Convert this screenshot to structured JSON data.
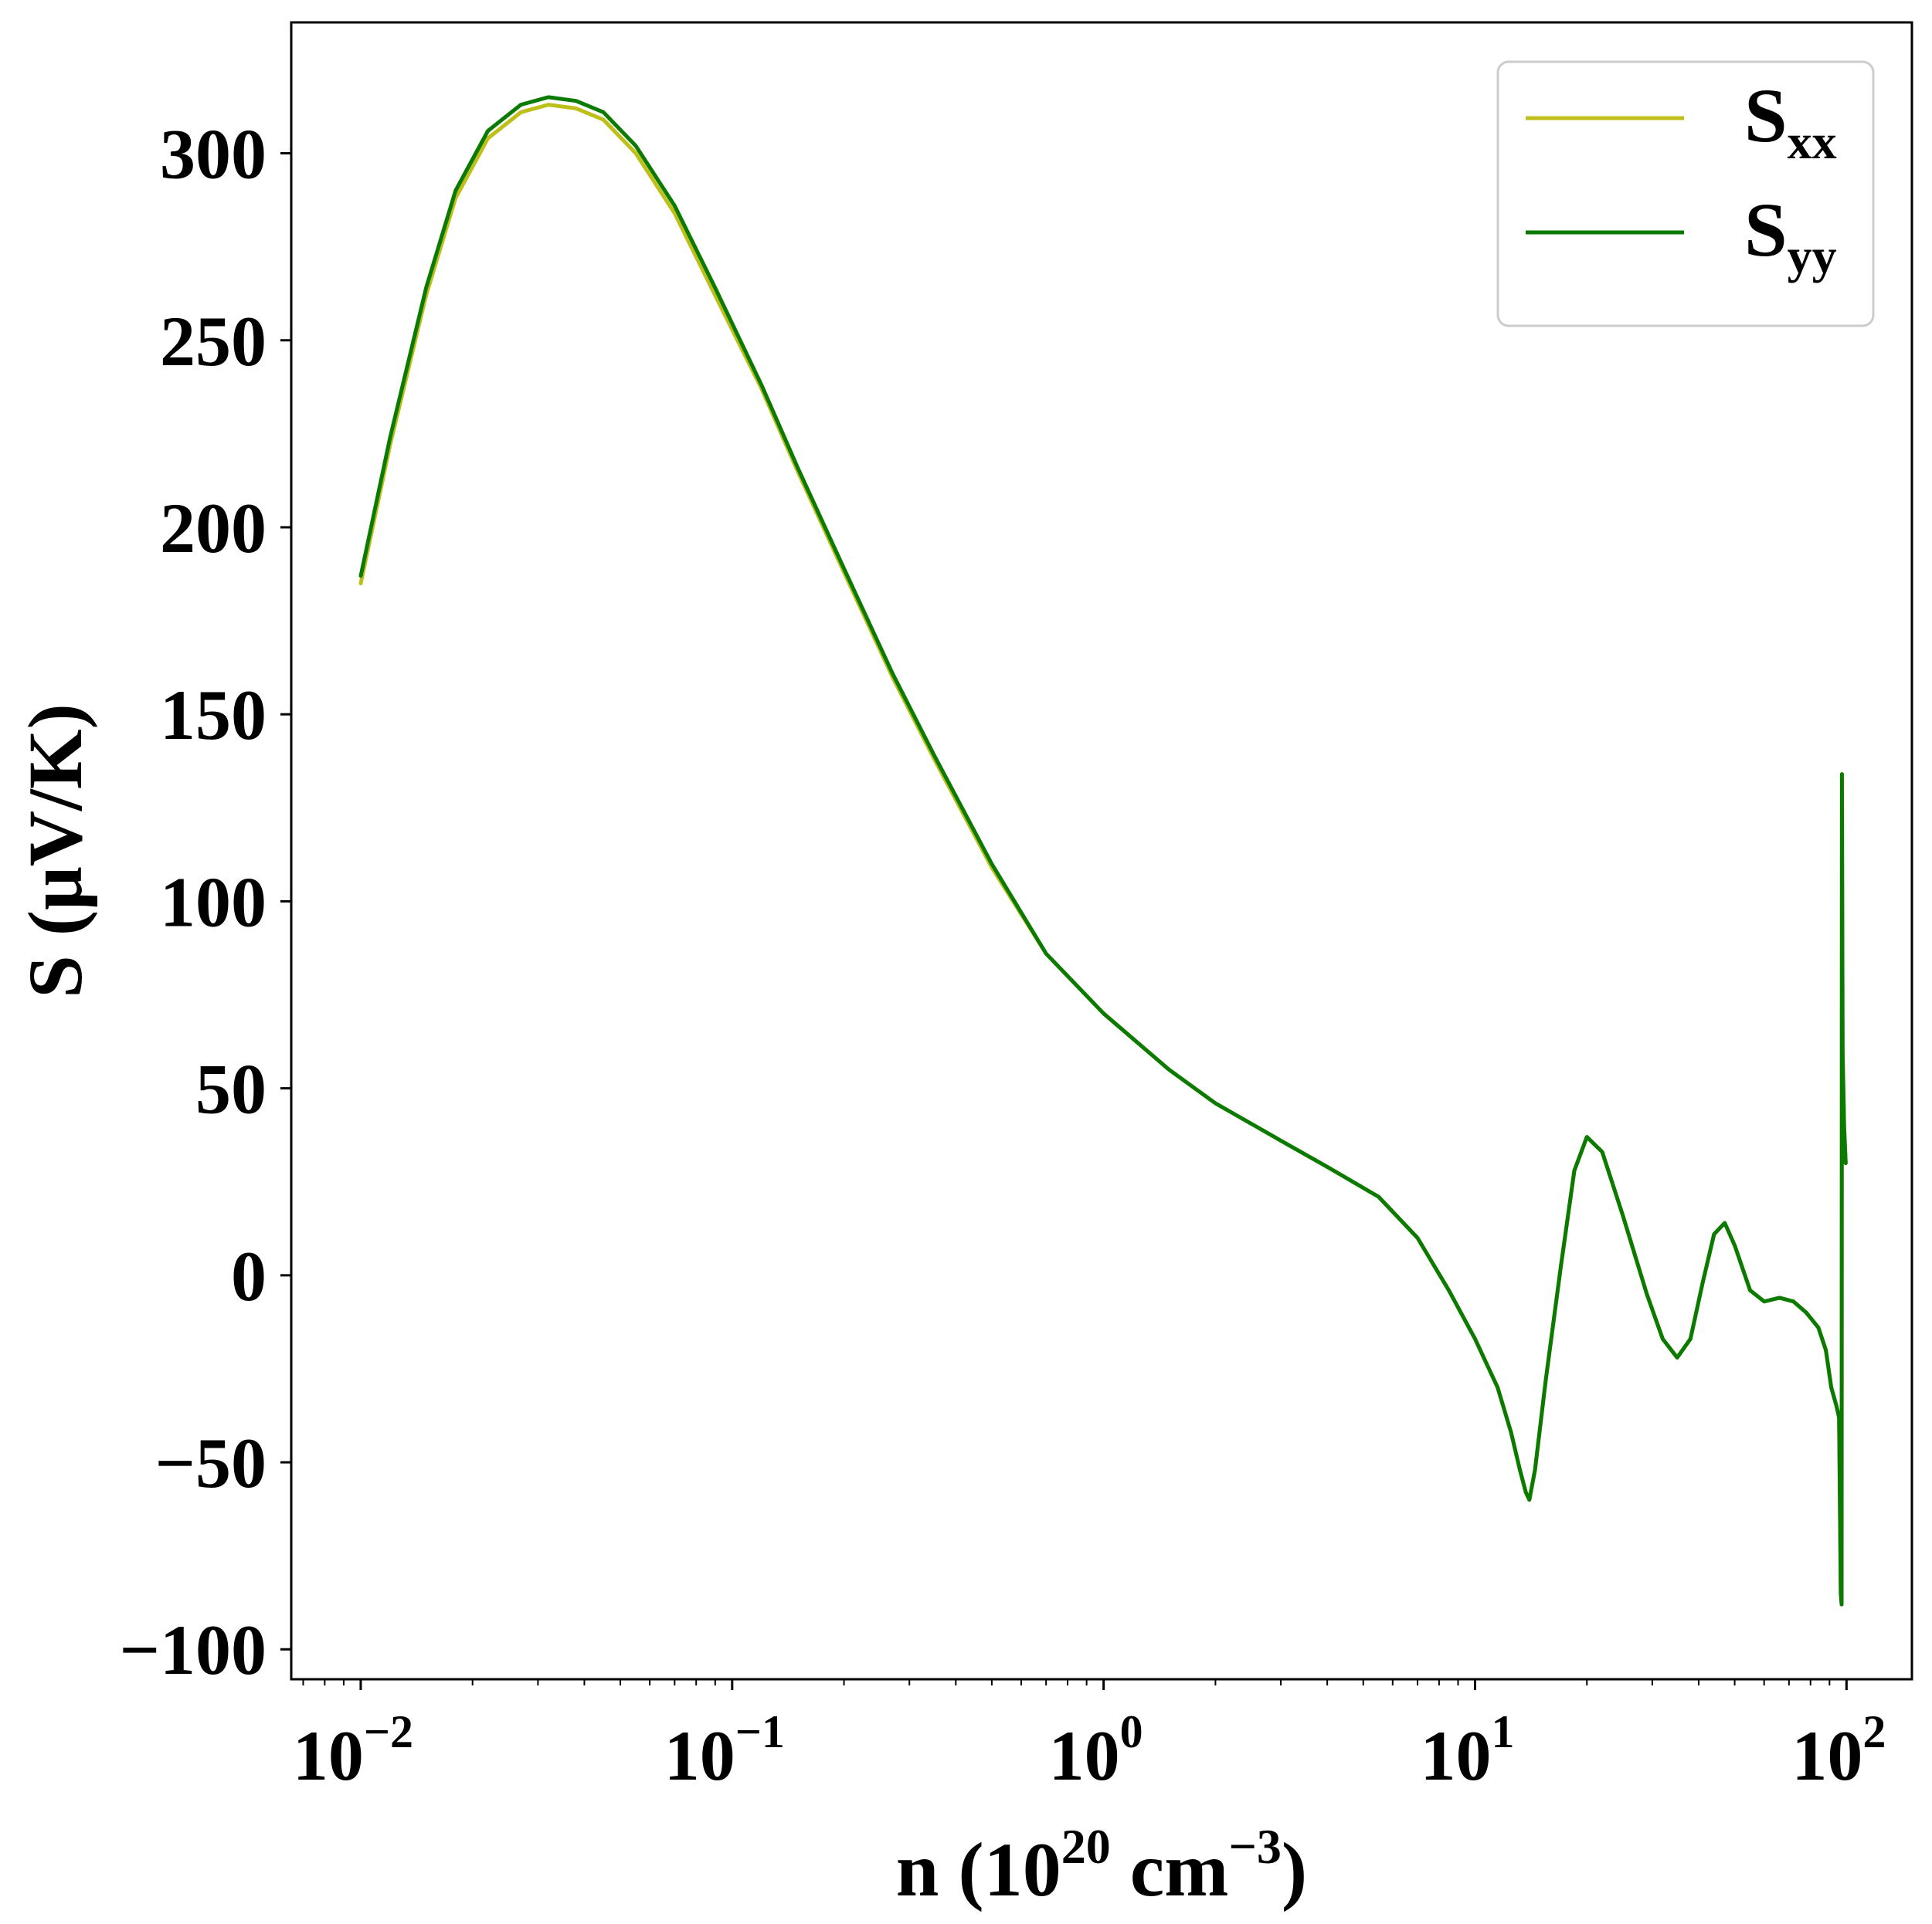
{
  "chart_data": {
    "type": "line",
    "xscale": "log",
    "xlabel": {
      "base": "n (10",
      "exp1": "20",
      "mid": " cm",
      "exp2": "−3",
      "end": ")"
    },
    "ylabel": "S (μV/K)",
    "xlim": [
      0.0065,
      150
    ],
    "ylim": [
      -108,
      335
    ],
    "xticks": [
      {
        "value": 0.01,
        "base": "10",
        "exp": "−2"
      },
      {
        "value": 0.1,
        "base": "10",
        "exp": "−1"
      },
      {
        "value": 1,
        "base": "10",
        "exp": "0"
      },
      {
        "value": 10,
        "base": "10",
        "exp": "1"
      },
      {
        "value": 100,
        "base": "10",
        "exp": "2"
      }
    ],
    "yticks": [
      {
        "value": 300,
        "label": "300"
      },
      {
        "value": 250,
        "label": "250"
      },
      {
        "value": 200,
        "label": "200"
      },
      {
        "value": 150,
        "label": "150"
      },
      {
        "value": 100,
        "label": "100"
      },
      {
        "value": 50,
        "label": "50"
      },
      {
        "value": 0,
        "label": "0"
      },
      {
        "value": -50,
        "label": "−50"
      },
      {
        "value": -100,
        "label": "−100"
      }
    ],
    "legend": {
      "position": "top-right"
    },
    "series": [
      {
        "name": "S_xx",
        "label": "S",
        "sub": "xx",
        "color": "#bfbf1a",
        "points": [
          [
            0.01,
            185
          ],
          [
            0.012,
            222
          ],
          [
            0.015,
            262
          ],
          [
            0.018,
            288
          ],
          [
            0.022,
            304
          ],
          [
            0.027,
            311
          ],
          [
            0.032,
            313
          ],
          [
            0.038,
            312
          ],
          [
            0.045,
            309
          ],
          [
            0.055,
            300
          ],
          [
            0.07,
            284
          ],
          [
            0.09,
            262
          ],
          [
            0.12,
            237
          ],
          [
            0.15,
            215
          ],
          [
            0.2,
            188
          ],
          [
            0.27,
            160
          ],
          [
            0.35,
            138
          ],
          [
            0.5,
            109
          ],
          [
            0.7,
            86
          ],
          [
            1.0,
            70
          ],
          [
            1.5,
            55
          ],
          [
            2.0,
            46
          ],
          [
            3.0,
            36
          ],
          [
            4.0,
            29
          ],
          [
            5.5,
            21
          ],
          [
            7.0,
            10
          ],
          [
            8.5,
            -4
          ],
          [
            10.0,
            -17
          ],
          [
            11.5,
            -30
          ],
          [
            12.5,
            -42
          ],
          [
            13.2,
            -52
          ],
          [
            13.7,
            -58
          ],
          [
            14.0,
            -60
          ],
          [
            14.5,
            -52
          ],
          [
            15.5,
            -28
          ],
          [
            17.0,
            2
          ],
          [
            18.5,
            28
          ],
          [
            20.0,
            37
          ],
          [
            22.0,
            33
          ],
          [
            25.0,
            16
          ],
          [
            29.0,
            -5
          ],
          [
            32.0,
            -17
          ],
          [
            35.0,
            -22
          ],
          [
            38.0,
            -17
          ],
          [
            41.0,
            -2
          ],
          [
            44.0,
            11
          ],
          [
            47.0,
            14
          ],
          [
            50.0,
            8
          ],
          [
            55.0,
            -4
          ],
          [
            60.0,
            -7
          ],
          [
            66.0,
            -6
          ],
          [
            72.0,
            -7
          ],
          [
            78.0,
            -10
          ],
          [
            84.0,
            -14
          ],
          [
            88.0,
            -20
          ],
          [
            91.0,
            -30
          ],
          [
            94.0,
            -35
          ],
          [
            95.5,
            -38
          ],
          [
            96.5,
            -85
          ],
          [
            97.0,
            -88
          ],
          [
            97.2,
            134
          ],
          [
            97.6,
            60
          ],
          [
            98.5,
            40
          ],
          [
            99.5,
            30
          ]
        ]
      },
      {
        "name": "S_yy",
        "label": "S",
        "sub": "yy",
        "color": "#0a7a00",
        "points": [
          [
            0.01,
            187
          ],
          [
            0.012,
            224
          ],
          [
            0.015,
            264
          ],
          [
            0.018,
            290
          ],
          [
            0.022,
            306
          ],
          [
            0.027,
            313
          ],
          [
            0.032,
            315
          ],
          [
            0.038,
            314
          ],
          [
            0.045,
            311
          ],
          [
            0.055,
            302
          ],
          [
            0.07,
            286
          ],
          [
            0.09,
            264
          ],
          [
            0.12,
            238
          ],
          [
            0.15,
            216
          ],
          [
            0.2,
            189
          ],
          [
            0.27,
            161
          ],
          [
            0.35,
            139
          ],
          [
            0.5,
            110
          ],
          [
            0.7,
            86
          ],
          [
            1.0,
            70
          ],
          [
            1.5,
            55
          ],
          [
            2.0,
            46
          ],
          [
            3.0,
            36
          ],
          [
            4.0,
            29
          ],
          [
            5.5,
            21
          ],
          [
            7.0,
            10
          ],
          [
            8.5,
            -4
          ],
          [
            10.0,
            -17
          ],
          [
            11.5,
            -30
          ],
          [
            12.5,
            -42
          ],
          [
            13.2,
            -52
          ],
          [
            13.7,
            -58
          ],
          [
            14.0,
            -60
          ],
          [
            14.5,
            -52
          ],
          [
            15.5,
            -28
          ],
          [
            17.0,
            2
          ],
          [
            18.5,
            28
          ],
          [
            20.0,
            37
          ],
          [
            22.0,
            33
          ],
          [
            25.0,
            16
          ],
          [
            29.0,
            -5
          ],
          [
            32.0,
            -17
          ],
          [
            35.0,
            -22
          ],
          [
            38.0,
            -17
          ],
          [
            41.0,
            -2
          ],
          [
            44.0,
            11
          ],
          [
            47.0,
            14
          ],
          [
            50.0,
            8
          ],
          [
            55.0,
            -4
          ],
          [
            60.0,
            -7
          ],
          [
            66.0,
            -6
          ],
          [
            72.0,
            -7
          ],
          [
            78.0,
            -10
          ],
          [
            84.0,
            -14
          ],
          [
            88.0,
            -20
          ],
          [
            91.0,
            -30
          ],
          [
            94.0,
            -35
          ],
          [
            95.5,
            -38
          ],
          [
            96.5,
            -85
          ],
          [
            97.0,
            -88
          ],
          [
            97.2,
            134
          ],
          [
            97.6,
            60
          ],
          [
            98.5,
            40
          ],
          [
            99.5,
            30
          ]
        ]
      }
    ]
  }
}
